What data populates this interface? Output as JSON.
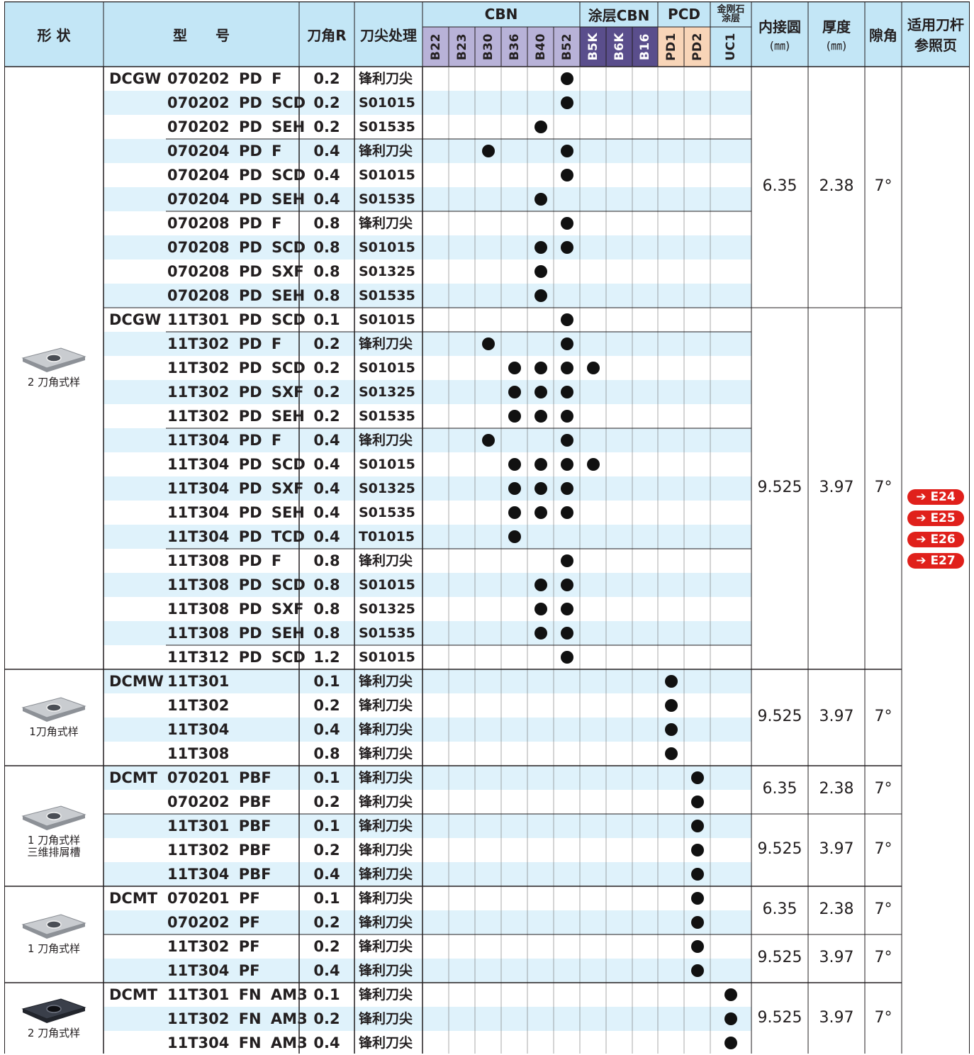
{
  "header": {
    "shape": "形 状",
    "model": "型　　号",
    "corner_r": "刀角R",
    "edge_treatment": "刀尖处理",
    "cbn": "CBN",
    "coated_cbn": "涂层CBN",
    "pcd": "PCD",
    "diamond_coating_line1": "金刚石",
    "diamond_coating_line2": "涂层",
    "inscribed_circle": "内接圆",
    "inscribed_circle_unit": "(㎜)",
    "thickness": "厚度",
    "thickness_unit": "(㎜)",
    "clearance_angle": "隙角",
    "toolholder_ref_line1": "适用刀杆",
    "toolholder_ref_line2": "参照页"
  },
  "grades": [
    "B22",
    "B23",
    "B30",
    "B36",
    "B40",
    "B52",
    "B5K",
    "B6K",
    "B16",
    "PD1",
    "PD2",
    "UC1"
  ],
  "grade_colors": {
    "cbn": "#b8b2d8",
    "coated_cbn": "#5a4e8c",
    "pcd": "#f8d5b8",
    "diamond": "#c3e6f6",
    "header": "#c3e6f6",
    "stripe": "#dff2fb",
    "reference_badge": "#e0201b"
  },
  "references": [
    "➔ E24",
    "➔ E25",
    "➔ E26",
    "➔ E27"
  ],
  "groups": [
    {
      "series": "DCGW",
      "shape_icon": "insert-2-corner-icon",
      "shape_label": [
        "2 刀角式样"
      ],
      "subgroups": [
        {
          "ic": "6.35",
          "thickness": "2.38",
          "clearance": "7°",
          "rows": [
            {
              "model": "070202 PD F",
              "r": "0.2",
              "edge": "锋利刀尖",
              "dots": [
                "B52"
              ]
            },
            {
              "model": "070202 PD SCD",
              "r": "0.2",
              "edge": "S01015",
              "dots": [
                "B52"
              ]
            },
            {
              "model": "070202 PD SEH",
              "r": "0.2",
              "edge": "S01535",
              "dots": [
                "B40"
              ]
            },
            {
              "model": "070204 PD F",
              "r": "0.4",
              "edge": "锋利刀尖",
              "dots": [
                "B30",
                "B52"
              ]
            },
            {
              "model": "070204 PD SCD",
              "r": "0.4",
              "edge": "S01015",
              "dots": [
                "B52"
              ]
            },
            {
              "model": "070204 PD SEH",
              "r": "0.4",
              "edge": "S01535",
              "dots": [
                "B40"
              ]
            },
            {
              "model": "070208 PD F",
              "r": "0.8",
              "edge": "锋利刀尖",
              "dots": [
                "B52"
              ]
            },
            {
              "model": "070208 PD SCD",
              "r": "0.8",
              "edge": "S01015",
              "dots": [
                "B40",
                "B52"
              ]
            },
            {
              "model": "070208 PD SXF",
              "r": "0.8",
              "edge": "S01325",
              "dots": [
                "B40"
              ]
            },
            {
              "model": "070208 PD SEH",
              "r": "0.8",
              "edge": "S01535",
              "dots": [
                "B40"
              ]
            }
          ]
        },
        {
          "ic": "9.525",
          "thickness": "3.97",
          "clearance": "7°",
          "rows": [
            {
              "model": "11T301 PD SCD",
              "r": "0.1",
              "edge": "S01015",
              "dots": [
                "B52"
              ],
              "series": "DCGW"
            },
            {
              "model": "11T302 PD F",
              "r": "0.2",
              "edge": "锋利刀尖",
              "dots": [
                "B30",
                "B52"
              ]
            },
            {
              "model": "11T302 PD SCD",
              "r": "0.2",
              "edge": "S01015",
              "dots": [
                "B36",
                "B40",
                "B52",
                "B5K"
              ]
            },
            {
              "model": "11T302 PD SXF",
              "r": "0.2",
              "edge": "S01325",
              "dots": [
                "B36",
                "B40",
                "B52"
              ]
            },
            {
              "model": "11T302 PD SEH",
              "r": "0.2",
              "edge": "S01535",
              "dots": [
                "B36",
                "B40",
                "B52"
              ]
            },
            {
              "model": "11T304 PD F",
              "r": "0.4",
              "edge": "锋利刀尖",
              "dots": [
                "B30",
                "B52"
              ]
            },
            {
              "model": "11T304 PD SCD",
              "r": "0.4",
              "edge": "S01015",
              "dots": [
                "B36",
                "B40",
                "B52",
                "B5K"
              ]
            },
            {
              "model": "11T304 PD SXF",
              "r": "0.4",
              "edge": "S01325",
              "dots": [
                "B36",
                "B40",
                "B52"
              ]
            },
            {
              "model": "11T304 PD SEH",
              "r": "0.4",
              "edge": "S01535",
              "dots": [
                "B36",
                "B40",
                "B52"
              ]
            },
            {
              "model": "11T304 PD TCD",
              "r": "0.4",
              "edge": "T01015",
              "dots": [
                "B36"
              ]
            },
            {
              "model": "11T308 PD F",
              "r": "0.8",
              "edge": "锋利刀尖",
              "dots": [
                "B52"
              ]
            },
            {
              "model": "11T308 PD SCD",
              "r": "0.8",
              "edge": "S01015",
              "dots": [
                "B40",
                "B52"
              ]
            },
            {
              "model": "11T308 PD SXF",
              "r": "0.8",
              "edge": "S01325",
              "dots": [
                "B40",
                "B52"
              ]
            },
            {
              "model": "11T308 PD SEH",
              "r": "0.8",
              "edge": "S01535",
              "dots": [
                "B40",
                "B52"
              ]
            },
            {
              "model": "11T312 PD SCD",
              "r": "1.2",
              "edge": "S01015",
              "dots": [
                "B52"
              ]
            }
          ]
        }
      ]
    },
    {
      "series": "DCMW",
      "shape_icon": "insert-1-corner-icon",
      "shape_label": [
        "1刀角式样"
      ],
      "subgroups": [
        {
          "ic": "9.525",
          "thickness": "3.97",
          "clearance": "7°",
          "rows": [
            {
              "model": "11T301",
              "r": "0.1",
              "edge": "锋利刀尖",
              "dots": [
                "PD1"
              ]
            },
            {
              "model": "11T302",
              "r": "0.2",
              "edge": "锋利刀尖",
              "dots": [
                "PD1"
              ]
            },
            {
              "model": "11T304",
              "r": "0.4",
              "edge": "锋利刀尖",
              "dots": [
                "PD1"
              ]
            },
            {
              "model": "11T308",
              "r": "0.8",
              "edge": "锋利刀尖",
              "dots": [
                "PD1"
              ]
            }
          ]
        }
      ]
    },
    {
      "series": "DCMT",
      "shape_icon": "insert-1-corner-chipbreaker-icon",
      "shape_label": [
        "1 刀角式样",
        "三维排屑槽"
      ],
      "subgroups": [
        {
          "ic": "6.35",
          "thickness": "2.38",
          "clearance": "7°",
          "rows": [
            {
              "model": "070201 PBF",
              "r": "0.1",
              "edge": "锋利刀尖",
              "dots": [
                "PD2"
              ]
            },
            {
              "model": "070202 PBF",
              "r": "0.2",
              "edge": "锋利刀尖",
              "dots": [
                "PD2"
              ]
            }
          ]
        },
        {
          "ic": "9.525",
          "thickness": "3.97",
          "clearance": "7°",
          "rows": [
            {
              "model": "11T301 PBF",
              "r": "0.1",
              "edge": "锋利刀尖",
              "dots": [
                "PD2"
              ]
            },
            {
              "model": "11T302 PBF",
              "r": "0.2",
              "edge": "锋利刀尖",
              "dots": [
                "PD2"
              ]
            },
            {
              "model": "11T304 PBF",
              "r": "0.4",
              "edge": "锋利刀尖",
              "dots": [
                "PD2"
              ]
            }
          ]
        }
      ]
    },
    {
      "series": "DCMT",
      "shape_icon": "insert-1-corner-icon",
      "shape_label": [
        "1 刀角式样"
      ],
      "subgroups": [
        {
          "ic": "6.35",
          "thickness": "2.38",
          "clearance": "7°",
          "rows": [
            {
              "model": "070201 PF",
              "r": "0.1",
              "edge": "锋利刀尖",
              "dots": [
                "PD2"
              ]
            },
            {
              "model": "070202 PF",
              "r": "0.2",
              "edge": "锋利刀尖",
              "dots": [
                "PD2"
              ]
            }
          ]
        },
        {
          "ic": "9.525",
          "thickness": "3.97",
          "clearance": "7°",
          "rows": [
            {
              "model": "11T302 PF",
              "r": "0.2",
              "edge": "锋利刀尖",
              "dots": [
                "PD2"
              ]
            },
            {
              "model": "11T304 PF",
              "r": "0.4",
              "edge": "锋利刀尖",
              "dots": [
                "PD2"
              ]
            }
          ]
        }
      ]
    },
    {
      "series": "DCMT",
      "shape_icon": "insert-2-corner-coated-icon",
      "shape_label": [
        "2 刀角式样"
      ],
      "subgroups": [
        {
          "ic": "9.525",
          "thickness": "3.97",
          "clearance": "7°",
          "rows": [
            {
              "model": "11T301 FN AM3",
              "r": "0.1",
              "edge": "锋利刀尖",
              "dots": [
                "UC1"
              ]
            },
            {
              "model": "11T302 FN AM3",
              "r": "0.2",
              "edge": "锋利刀尖",
              "dots": [
                "UC1"
              ]
            },
            {
              "model": "11T304 FN AM3",
              "r": "0.4",
              "edge": "锋利刀尖",
              "dots": [
                "UC1"
              ]
            }
          ]
        }
      ]
    }
  ]
}
